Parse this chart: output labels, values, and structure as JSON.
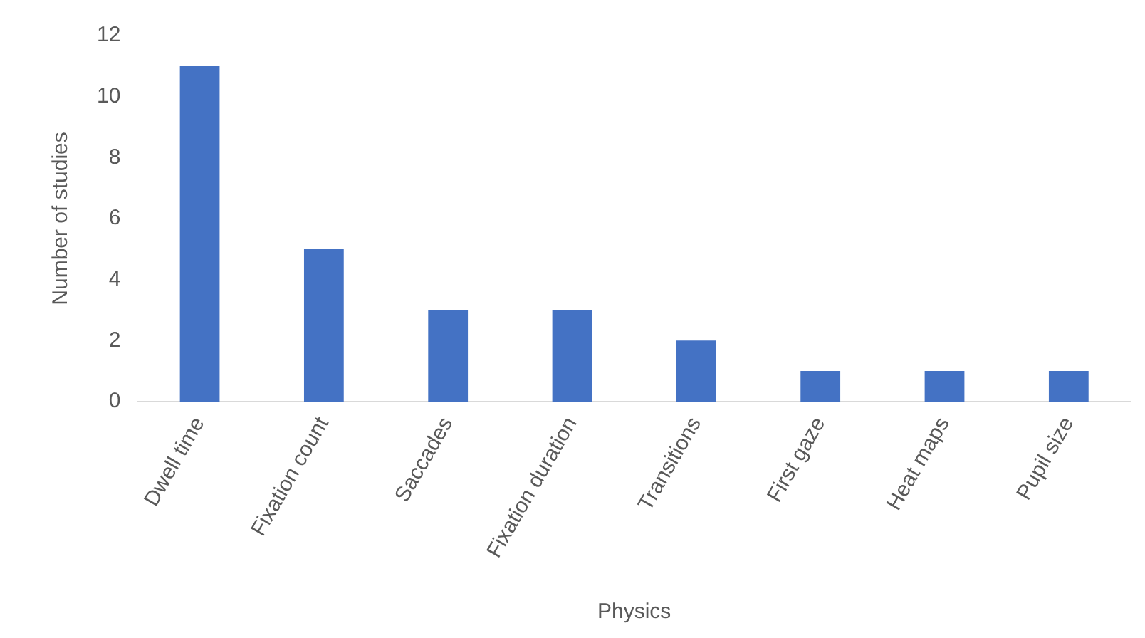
{
  "chart_data": {
    "type": "bar",
    "xlabel": "Physics",
    "ylabel": "Number of studies",
    "categories": [
      "Dwell time",
      "Fixation count",
      "Saccades",
      "Fixation duration",
      "Transitions",
      "First gaze",
      "Heat maps",
      "Pupil size"
    ],
    "values": [
      11,
      5,
      3,
      3,
      2,
      1,
      1,
      1
    ],
    "color": "#4472c4",
    "ylim": [
      0,
      12
    ],
    "yticks": [
      0,
      2,
      4,
      6,
      8,
      10,
      12
    ],
    "grid": false,
    "legend": false
  }
}
